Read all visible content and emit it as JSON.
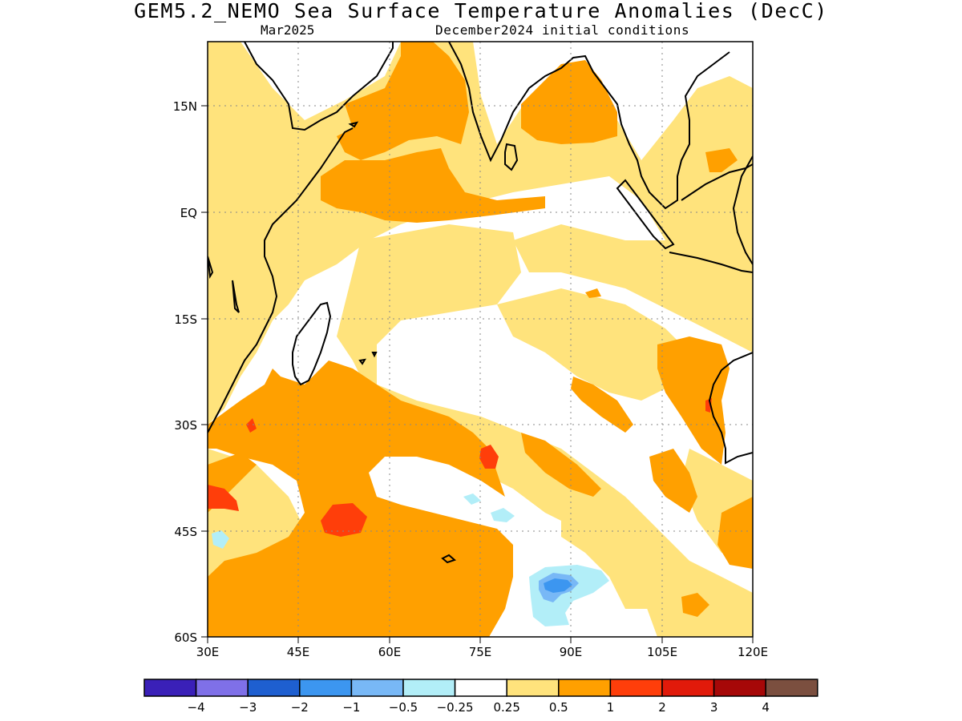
{
  "title": "GEM5.2_NEMO Sea Surface Temperature Anomalies (DecC)",
  "subtitle_left": "Mar2025",
  "subtitle_right": "December2024 initial conditions",
  "map": {
    "x_ticks": [
      "30E",
      "45E",
      "60E",
      "75E",
      "90E",
      "105E",
      "120E"
    ],
    "y_ticks": [
      "15N",
      "EQ",
      "15S",
      "30S",
      "45S",
      "60S"
    ],
    "lon_range": [
      30,
      120
    ],
    "lat_range": [
      -60,
      24
    ],
    "grid": true
  },
  "colorbar": {
    "labels": [
      "−4",
      "−3",
      "−2",
      "−1",
      "−0.5",
      "−0.25",
      "0.25",
      "0.5",
      "1",
      "2",
      "3",
      "4"
    ],
    "colors": [
      "#3a20b8",
      "#7f70e8",
      "#1e5fd0",
      "#3c96f0",
      "#78b8f6",
      "#b2eef8",
      "#ffffff",
      "#ffe37c",
      "#ffa000",
      "#ff3e0a",
      "#e11a0a",
      "#a60808",
      "#7b4f3f"
    ]
  },
  "colors": {
    "land_outline": "#000000",
    "positive_0_25": "#ffe37c",
    "positive_0_5": "#ffa000",
    "positive_1": "#ff3e0a",
    "negative_0_25": "#b2eef8",
    "negative_0_5": "#78b8f6",
    "negative_1": "#3c96f0"
  }
}
